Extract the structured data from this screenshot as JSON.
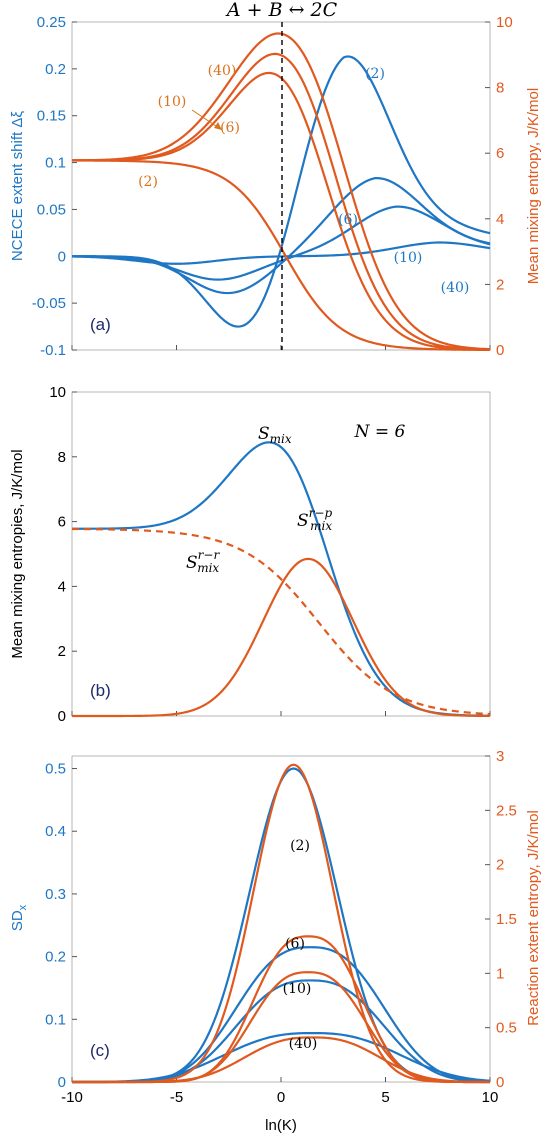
{
  "colors": {
    "blue": "#1f77c4",
    "orange": "#e05a1f",
    "orange_text": "#d9731c",
    "dark": "#1f2a6b",
    "black": "#000000"
  },
  "chart_data": [
    {
      "type": "line",
      "panel_label": "(a)",
      "title": "A + B ↔ 2C",
      "xlim": [
        -10,
        10
      ],
      "x_ticks": [
        -10,
        -5,
        0,
        5,
        10
      ],
      "left_axis": {
        "label": "NCECE extent shift Δξ",
        "ylim": [
          -0.1,
          0.25
        ],
        "ticks": [
          "-0.1",
          "-0.05",
          "0",
          "0.05",
          "0.1",
          "0.15",
          "0.2",
          "0.25"
        ],
        "tick_values": [
          -0.1,
          -0.05,
          0,
          0.05,
          0.1,
          0.15,
          0.2,
          0.25
        ]
      },
      "right_axis": {
        "label": "Mean mixing entropy, J/K/mol",
        "ylim": [
          0,
          10
        ],
        "ticks": [
          "0",
          "2",
          "4",
          "6",
          "8",
          "10"
        ],
        "tick_values": [
          0,
          2,
          4,
          6,
          8,
          10
        ]
      },
      "vline_x": 0.2,
      "series": [
        {
          "name": "(2)",
          "axis": "left",
          "color": "blue",
          "kind": "ncece",
          "peak": 0.222,
          "xp": 3.0,
          "trough": -0.093,
          "xt": -1.5
        },
        {
          "name": "(6)",
          "axis": "left",
          "color": "blue",
          "kind": "ncece",
          "peak": 0.085,
          "xp": 4.5,
          "trough": -0.04,
          "xt": -2.5
        },
        {
          "name": "(10)",
          "axis": "left",
          "color": "blue",
          "kind": "ncece",
          "peak": 0.054,
          "xp": 5.5,
          "trough": -0.025,
          "xt": -3.0
        },
        {
          "name": "(40)",
          "axis": "left",
          "color": "blue",
          "kind": "ncece",
          "peak": 0.015,
          "xp": 7.5,
          "trough": -0.008,
          "xt": -5.0
        },
        {
          "name": "(2)",
          "axis": "right",
          "color": "orange",
          "kind": "smix",
          "base": 5.78,
          "amp": 0,
          "xc": 0,
          "w": 3.0,
          "xd": 0.2,
          "s": 1.3
        },
        {
          "name": "(6)",
          "axis": "right",
          "color": "orange",
          "kind": "smix",
          "base": 5.78,
          "amp": 3.6,
          "xc": 0.3,
          "w": 2.4,
          "xd": 1.8,
          "s": 1.2
        },
        {
          "name": "(10)",
          "axis": "right",
          "color": "orange",
          "kind": "smix",
          "base": 5.78,
          "amp": 3.95,
          "xc": 0.4,
          "w": 2.5,
          "xd": 2.4,
          "s": 1.2
        },
        {
          "name": "(40)",
          "axis": "right",
          "color": "orange",
          "kind": "smix",
          "base": 5.78,
          "amp": 4.35,
          "xc": 0.4,
          "w": 2.7,
          "xd": 3.0,
          "s": 1.2
        }
      ],
      "annotations": [
        "(40)",
        "(10)",
        "(6)",
        "(2)",
        "(2)",
        "(6)",
        "(10)",
        "(40)"
      ]
    },
    {
      "type": "line",
      "panel_label": "(b)",
      "annotation": "N = 6",
      "xlim": [
        -10,
        10
      ],
      "x_ticks": [
        -10,
        -5,
        0,
        5,
        10
      ],
      "left_axis": {
        "label": "Mean mixing entropies, J/K/mol",
        "ylim": [
          0,
          10
        ],
        "ticks": [
          "0",
          "2",
          "4",
          "6",
          "8",
          "10"
        ],
        "tick_values": [
          0,
          2,
          4,
          6,
          8,
          10
        ]
      },
      "series": [
        {
          "name": "S_mix",
          "color": "blue",
          "style": "solid",
          "kind": "smix",
          "base": 5.78,
          "amp": 3.6,
          "xc": 0.3,
          "w": 2.4,
          "xd": 1.8,
          "s": 1.2
        },
        {
          "name": "S_mix^(r−r)",
          "color": "orange",
          "style": "dashed",
          "kind": "sig",
          "base": 5.78,
          "xd": 1.8,
          "s": 1.8
        },
        {
          "name": "S_mix^(r−p)",
          "color": "orange",
          "style": "solid",
          "kind": "gauss",
          "amp": 4.85,
          "xc": 1.3,
          "w": 2.15
        }
      ]
    },
    {
      "type": "line",
      "panel_label": "(c)",
      "xlabel": "ln(K)",
      "xlim": [
        -10,
        10
      ],
      "x_ticks": [
        -10,
        -5,
        0,
        5,
        10
      ],
      "left_axis": {
        "label": "SDx",
        "ylim": [
          0,
          0.52
        ],
        "ticks": [
          "0",
          "0.1",
          "0.2",
          "0.3",
          "0.4",
          "0.5"
        ],
        "tick_values": [
          0,
          0.1,
          0.2,
          0.3,
          0.4,
          0.5
        ]
      },
      "right_axis": {
        "label": "Reaction extent entropy, J/K/mol",
        "ylim": [
          0,
          3
        ],
        "ticks": [
          "0",
          "0.5",
          "1",
          "1.5",
          "2",
          "2.5",
          "3"
        ],
        "tick_values": [
          0,
          0.5,
          1,
          1.5,
          2,
          2.5,
          3
        ]
      },
      "series": [
        {
          "name": "(2)",
          "axis": "left",
          "color": "blue",
          "kind": "gauss",
          "amp": 0.5,
          "xc": 0.6,
          "w": 2.1
        },
        {
          "name": "(6)",
          "axis": "left",
          "color": "blue",
          "kind": "flat",
          "amp": 0.215,
          "xc": 1.4,
          "w": 3.6
        },
        {
          "name": "(10)",
          "axis": "left",
          "color": "blue",
          "kind": "flat",
          "amp": 0.162,
          "xc": 1.4,
          "w": 3.6
        },
        {
          "name": "(40)",
          "axis": "left",
          "color": "blue",
          "kind": "flat",
          "amp": 0.078,
          "xc": 1.5,
          "w": 4.3
        },
        {
          "name": "(2)",
          "axis": "right",
          "color": "orange",
          "kind": "gauss",
          "amp": 2.92,
          "xc": 0.6,
          "w": 1.9
        },
        {
          "name": "(6)",
          "axis": "right",
          "color": "orange",
          "kind": "flat",
          "amp": 1.34,
          "xc": 1.3,
          "w": 2.7
        },
        {
          "name": "(10)",
          "axis": "right",
          "color": "orange",
          "kind": "flat",
          "amp": 1.01,
          "xc": 1.3,
          "w": 2.8
        },
        {
          "name": "(40)",
          "axis": "right",
          "color": "orange",
          "kind": "flat",
          "amp": 0.41,
          "xc": 1.5,
          "w": 3.3
        }
      ],
      "annotations": [
        "(2)",
        "(6)",
        "(10)",
        "(40)"
      ]
    }
  ],
  "labels": {
    "a_title": "A + B ↔ 2C",
    "a_ylabel_left": "NCECE extent shift Δξ",
    "a_ylabel_right": "Mean mixing entropy, J/K/mol",
    "a_id": "(a)",
    "a_ann_40": "(40)",
    "a_ann_10": "(10)",
    "a_ann_6": "(6)",
    "a_ann_2": "(2)",
    "a_ann_b2": "(2)",
    "a_ann_b6": "(6)",
    "a_ann_b10": "(10)",
    "a_ann_b40": "(40)",
    "b_ylabel": "Mean mixing entropies, J/K/mol",
    "b_id": "(b)",
    "b_n": "N = 6",
    "b_smix": "S",
    "b_smix_sub": "mix",
    "b_rp": "S",
    "b_rp_sub": "mix",
    "b_rp_sup": "r−p",
    "b_rr": "S",
    "b_rr_sub": "mix",
    "b_rr_sup": "r−r",
    "c_ylabel_left": "SD",
    "c_ylabel_left_sub": "x",
    "c_ylabel_right": "Reaction extent entropy, J/K/mol",
    "c_id": "(c)",
    "c_ann_2": "(2)",
    "c_ann_6": "(6)",
    "c_ann_10": "(10)",
    "c_ann_40": "(40)",
    "c_xlabel": "ln(K)"
  }
}
